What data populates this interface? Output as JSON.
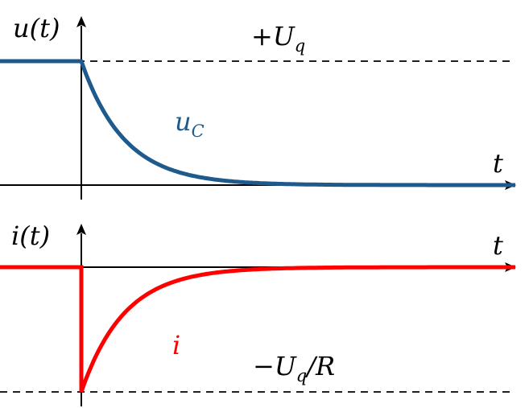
{
  "colors": {
    "voltage": "#1f5a8c",
    "current": "#ff0000",
    "axes": "#000000"
  },
  "chart_data": [
    {
      "type": "line",
      "ylabel": "u(t)",
      "xlabel": "t",
      "grid": false,
      "annotations": {
        "reference_label": "+U_q",
        "curve_label": "u_C"
      },
      "series": [
        {
          "name": "u_C",
          "color": "#1f5a8c",
          "x": [
            -2,
            -1,
            0,
            0.5,
            1,
            1.5,
            2,
            3,
            4,
            5,
            6,
            7,
            8,
            9,
            10
          ],
          "y": [
            1,
            1,
            1,
            0.607,
            0.368,
            0.223,
            0.135,
            0.05,
            0.018,
            0.007,
            0.002,
            0.001,
            0.0,
            0.0,
            0.0
          ]
        }
      ],
      "reference_level": 1,
      "ylim": [
        0,
        1
      ]
    },
    {
      "type": "line",
      "ylabel": "i(t)",
      "xlabel": "t",
      "grid": false,
      "annotations": {
        "reference_label": "−U_q/R",
        "curve_label": "i"
      },
      "series": [
        {
          "name": "i",
          "color": "#ff0000",
          "x": [
            -2,
            -1,
            0,
            0,
            0.5,
            1,
            1.5,
            2,
            3,
            4,
            5,
            6,
            7,
            8,
            9,
            10
          ],
          "y": [
            0,
            0,
            0,
            -1,
            -0.607,
            -0.368,
            -0.223,
            -0.135,
            -0.05,
            -0.018,
            -0.007,
            -0.002,
            -0.001,
            0.0,
            0.0,
            0.0
          ]
        }
      ],
      "reference_level": -1,
      "ylim": [
        -1,
        0
      ]
    }
  ]
}
